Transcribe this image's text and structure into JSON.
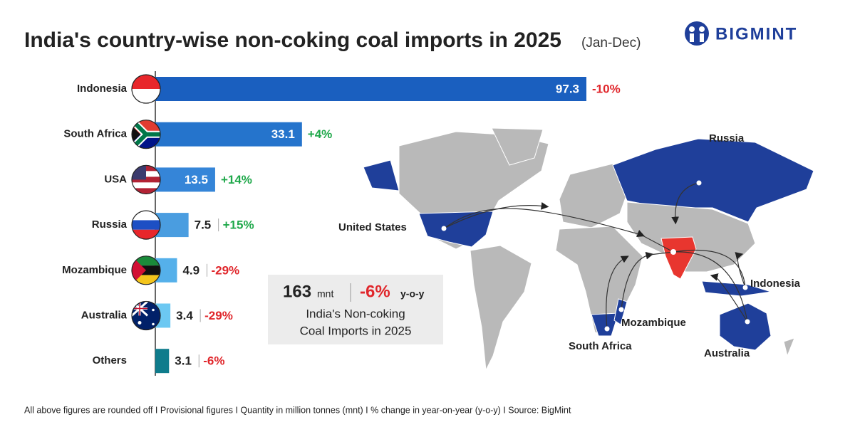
{
  "header": {
    "title": "India's country-wise non-coking coal imports in 2025",
    "subtitle": "(Jan-Dec)",
    "logo": "BIGMINT"
  },
  "chart_data": {
    "type": "bar",
    "orientation": "horizontal",
    "categories": [
      "Indonesia",
      "South Africa",
      "USA",
      "Russia",
      "Mozambique",
      "Australia",
      "Others"
    ],
    "values": [
      97.3,
      33.1,
      13.5,
      7.5,
      4.9,
      3.4,
      3.1
    ],
    "colors": [
      "#1a5fbf",
      "#2574cc",
      "#3585d8",
      "#4a9de0",
      "#55b0ea",
      "#6cc8f2",
      "#0f7c8c"
    ],
    "changes": [
      {
        "value": -10,
        "label": "-10%"
      },
      {
        "value": 4,
        "label": "+4%"
      },
      {
        "value": 14,
        "label": "+14%"
      },
      {
        "value": 15,
        "label": "+15%"
      },
      {
        "value": -29,
        "label": "-29%"
      },
      {
        "value": -29,
        "label": "-29%"
      },
      {
        "value": -6,
        "label": "-6%"
      }
    ]
  },
  "summary": {
    "total": 163,
    "total_unit": "mnt",
    "change": {
      "value": -6,
      "label": "-6%"
    },
    "change_unit": "y-o-y",
    "caption": [
      "India's Non-coking",
      "Coal Imports in 2025"
    ]
  },
  "map": {
    "labels": [
      "Russia",
      "United States",
      "Indonesia",
      "Mozambique",
      "South Africa",
      "Australia"
    ]
  },
  "footer": "All above figures are rounded off  I  Provisional figures  I  Quantity in million tonnes (mnt)  I  % change in year-on-year (y-o-y)  I  Source: BigMint"
}
